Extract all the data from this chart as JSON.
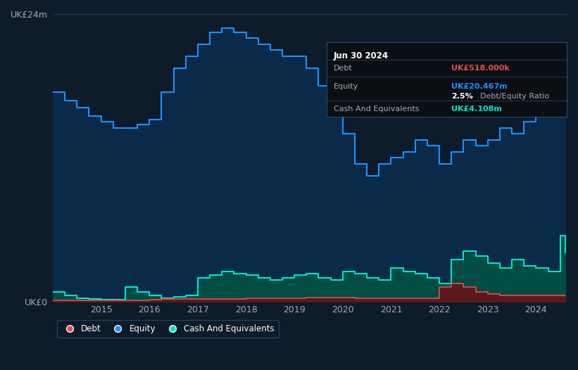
{
  "bg_color": "#0d1b2a",
  "plot_bg_color": "#0d1b2a",
  "ylim": [
    0,
    24
  ],
  "y_tick_labels": [
    "UK£0",
    "UK£24m"
  ],
  "grid_color": "#1e3a5f",
  "equity_color": "#1e90ff",
  "equity_fill": "#0a2a4a",
  "debt_color": "#e05050",
  "debt_fill": "#5a1a1a",
  "cash_color": "#00e5cc",
  "cash_fill": "#004d44",
  "tooltip_bg": "#0a0f14",
  "tooltip_border": "#2a4a6a",
  "legend_bg": "#0d1b2a",
  "legend_border": "#2a4a6a",
  "dates": [
    2014.0,
    2014.25,
    2014.5,
    2014.75,
    2015.0,
    2015.25,
    2015.5,
    2015.75,
    2016.0,
    2016.25,
    2016.5,
    2016.75,
    2017.0,
    2017.25,
    2017.5,
    2017.75,
    2018.0,
    2018.25,
    2018.5,
    2018.75,
    2019.0,
    2019.25,
    2019.5,
    2019.75,
    2020.0,
    2020.25,
    2020.5,
    2020.75,
    2021.0,
    2021.25,
    2021.5,
    2021.75,
    2022.0,
    2022.25,
    2022.5,
    2022.75,
    2023.0,
    2023.25,
    2023.5,
    2023.75,
    2024.0,
    2024.25,
    2024.5,
    2024.6
  ],
  "equity": [
    17.5,
    16.8,
    16.2,
    15.5,
    15.0,
    14.5,
    14.5,
    14.8,
    15.2,
    17.5,
    19.5,
    20.5,
    21.5,
    22.5,
    22.8,
    22.5,
    22.0,
    21.5,
    21.0,
    20.5,
    20.5,
    19.5,
    18.0,
    16.0,
    14.0,
    11.5,
    10.5,
    11.5,
    12.0,
    12.5,
    13.5,
    13.0,
    11.5,
    12.5,
    13.5,
    13.0,
    13.5,
    14.5,
    14.0,
    15.0,
    16.5,
    18.0,
    20.5,
    20.467
  ],
  "debt": [
    0.1,
    0.1,
    0.1,
    0.1,
    0.1,
    0.1,
    0.1,
    0.1,
    0.15,
    0.2,
    0.2,
    0.2,
    0.2,
    0.2,
    0.2,
    0.2,
    0.3,
    0.3,
    0.3,
    0.3,
    0.3,
    0.35,
    0.35,
    0.35,
    0.35,
    0.3,
    0.3,
    0.3,
    0.3,
    0.3,
    0.3,
    0.3,
    1.2,
    1.5,
    1.2,
    0.8,
    0.6,
    0.5,
    0.5,
    0.52,
    0.52,
    0.518,
    0.518,
    0.518
  ],
  "cash": [
    0.8,
    0.5,
    0.3,
    0.2,
    0.15,
    0.15,
    1.2,
    0.8,
    0.5,
    0.3,
    0.4,
    0.5,
    2.0,
    2.2,
    2.5,
    2.3,
    2.2,
    2.0,
    1.8,
    2.0,
    2.2,
    2.3,
    2.0,
    1.8,
    2.5,
    2.3,
    2.0,
    1.8,
    2.8,
    2.5,
    2.3,
    2.0,
    1.5,
    3.5,
    4.2,
    3.8,
    3.2,
    2.8,
    3.5,
    3.0,
    2.8,
    2.5,
    5.5,
    4.108
  ],
  "x_ticks": [
    2015,
    2016,
    2017,
    2018,
    2019,
    2020,
    2021,
    2022,
    2023,
    2024
  ],
  "x_tick_labels": [
    "2015",
    "2016",
    "2017",
    "2018",
    "2019",
    "2020",
    "2021",
    "2022",
    "2023",
    "2024"
  ],
  "tooltip_date": "Jun 30 2024",
  "tooltip_debt_label": "Debt",
  "tooltip_debt_val": "UK£518.000k",
  "tooltip_equity_label": "Equity",
  "tooltip_equity_val": "UK£20.467m",
  "tooltip_de_ratio": "2.5%",
  "tooltip_de_text": "Debt/Equity Ratio",
  "tooltip_cash_label": "Cash And Equivalents",
  "tooltip_cash_val": "UK£4.108m",
  "legend_debt": "Debt",
  "legend_equity": "Equity",
  "legend_cash": "Cash And Equivalents"
}
